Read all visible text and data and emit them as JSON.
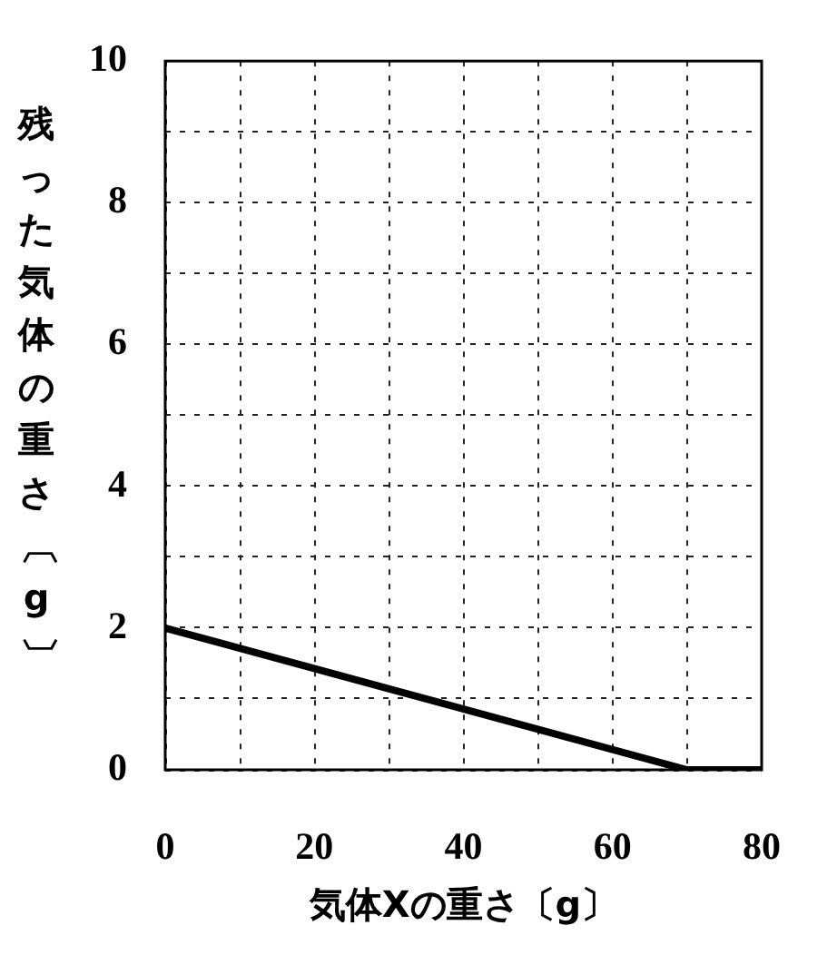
{
  "chart_data": {
    "type": "line",
    "xlabel": "気体Xの重さ〔g〕",
    "ylabel": "残った気体の重さ〔g〕",
    "x": [
      0,
      70,
      80
    ],
    "values": [
      2,
      0,
      0
    ],
    "color": "#000000",
    "xlim": [
      0,
      80
    ],
    "ylim": [
      0,
      10
    ],
    "xticks": [
      0,
      {
        "value": 10,
        "label": null
      },
      20,
      {
        "value": 30,
        "label": null
      },
      40,
      {
        "value": 50,
        "label": null
      },
      60,
      {
        "value": 70,
        "label": null
      },
      80
    ],
    "yticks": [
      0,
      {
        "value": 1,
        "label": null
      },
      2,
      {
        "value": 3,
        "label": null
      },
      4,
      {
        "value": 5,
        "label": null
      },
      6,
      {
        "value": 7,
        "label": null
      },
      8,
      {
        "value": 9,
        "label": null
      },
      10
    ],
    "grid": true,
    "marker": "none",
    "line_style": "solid"
  }
}
